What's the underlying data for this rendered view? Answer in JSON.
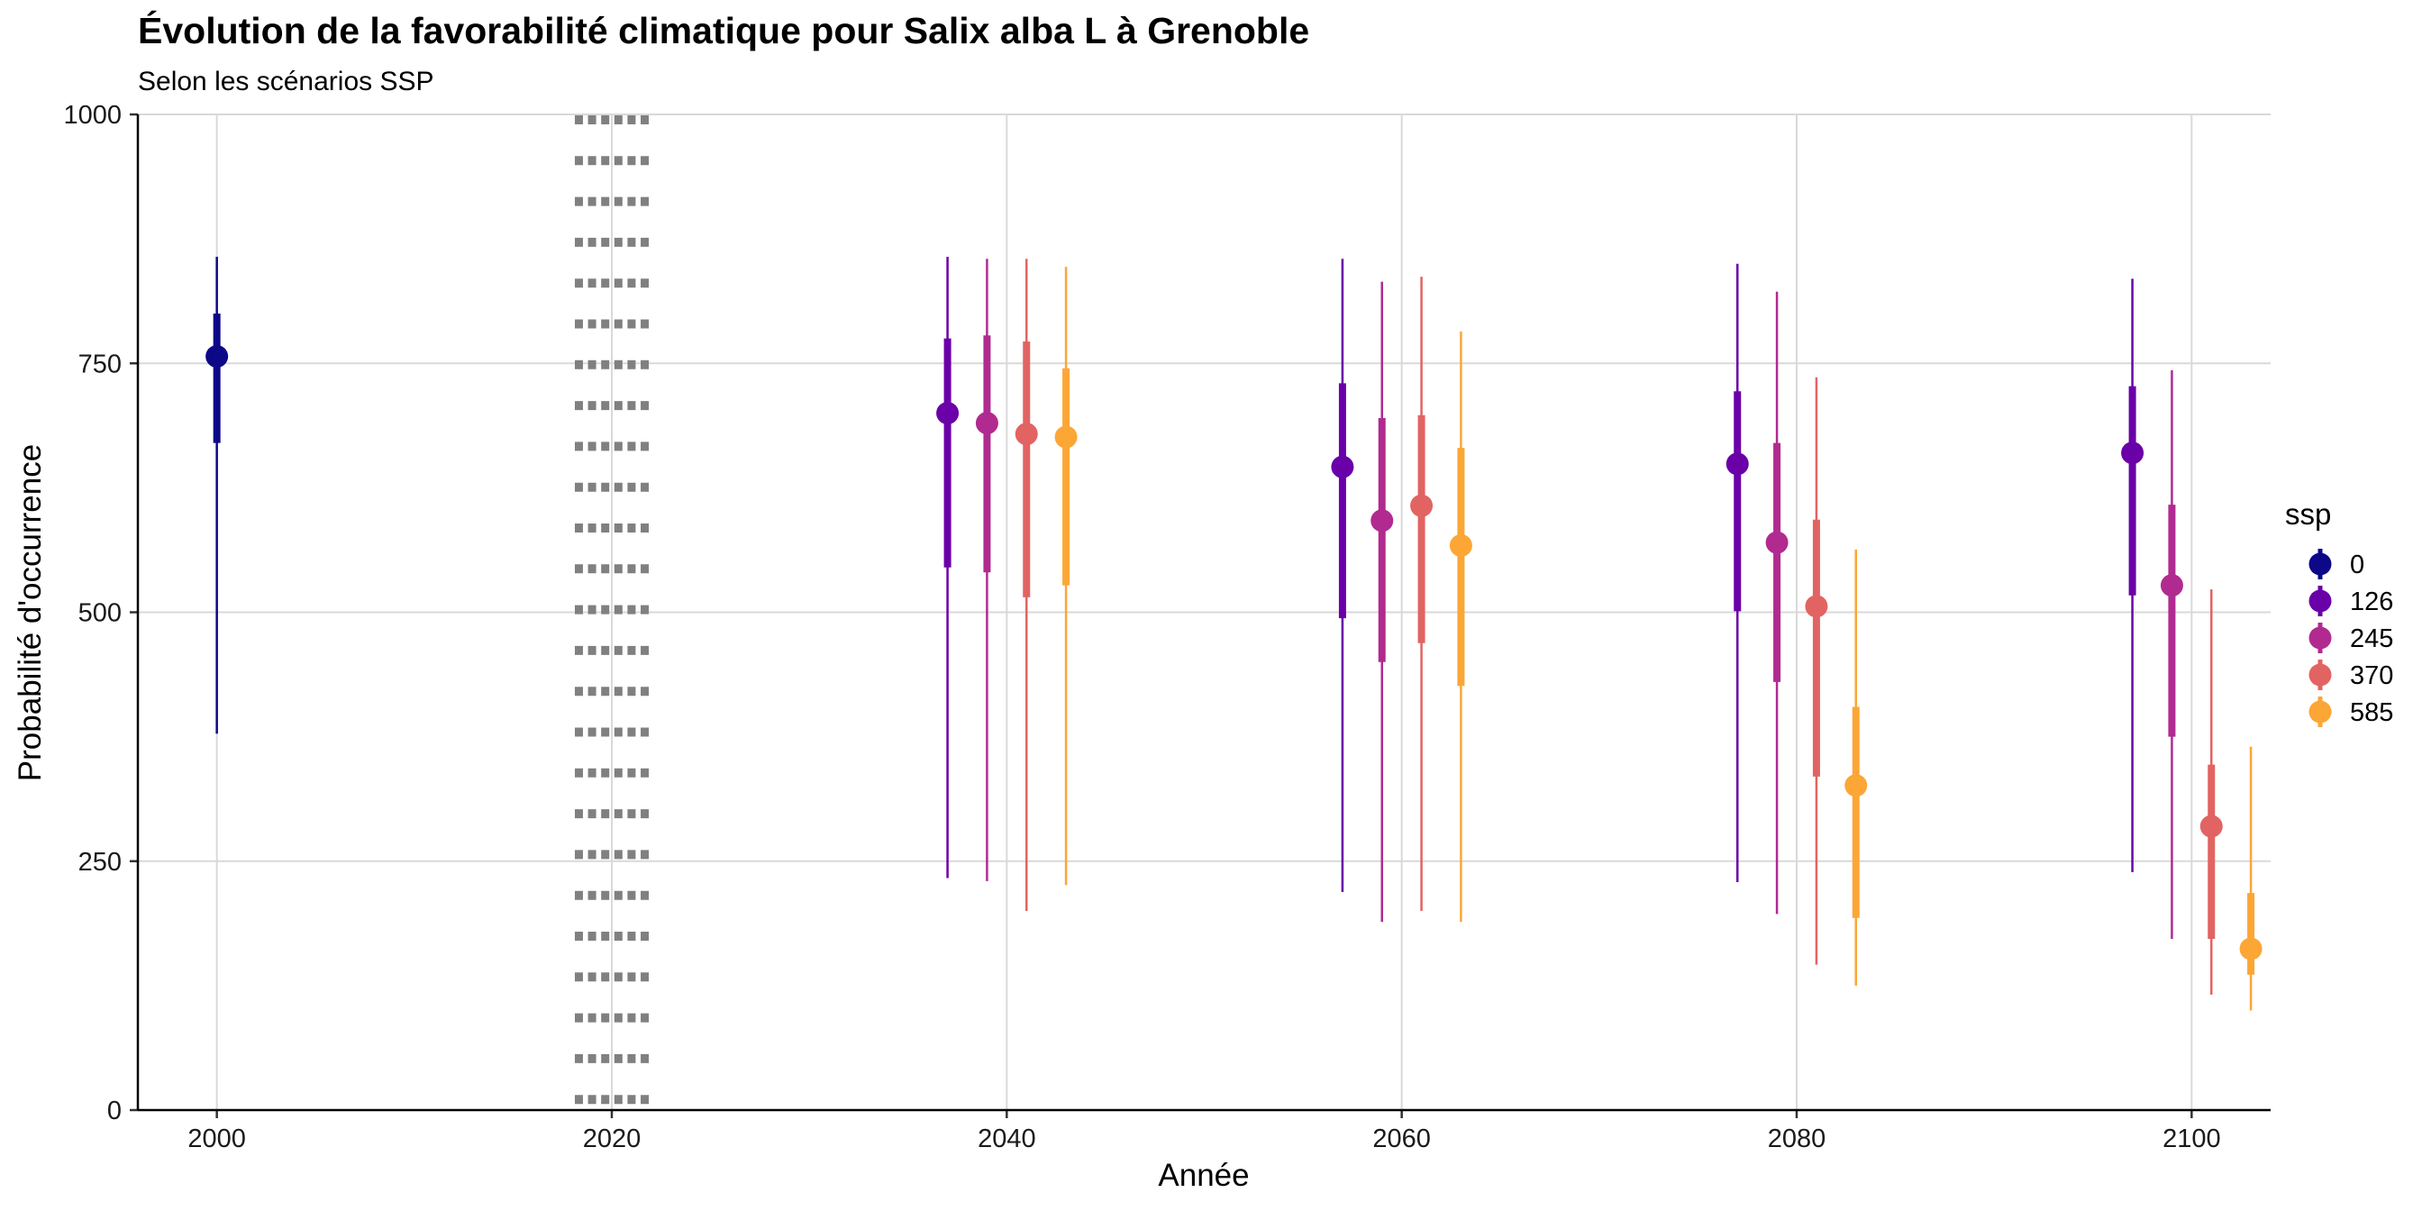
{
  "chart_data": {
    "type": "pointrange",
    "title": "Évolution de la favorabilité climatique pour Salix alba L à Grenoble",
    "subtitle": "Selon les scénarios SSP",
    "xlabel": "Année",
    "ylabel": "Probabilité d'occurrence",
    "xlim": [
      1996,
      2104
    ],
    "ylim": [
      0,
      1000
    ],
    "x_ticks": [
      "2000",
      "2020",
      "2040",
      "2060",
      "2080",
      "2100"
    ],
    "y_ticks": [
      "0",
      "250",
      "500",
      "750",
      "1000"
    ],
    "grid": true,
    "reference_band": {
      "x_start": 2018,
      "x_end": 2022,
      "style": "dotted"
    },
    "legend": {
      "title": "ssp",
      "position": "right"
    },
    "series": [
      {
        "name": "0",
        "color": "#0d0887",
        "points": [
          {
            "x": 2000,
            "y": 757,
            "inner": [
              670,
              800
            ],
            "outer": [
              378,
              857
            ]
          }
        ]
      },
      {
        "name": "126",
        "color": "#6a00a8",
        "points": [
          {
            "x": 2037,
            "y": 700,
            "inner": [
              545,
              775
            ],
            "outer": [
              233,
              857
            ]
          },
          {
            "x": 2057,
            "y": 646,
            "inner": [
              494,
              730
            ],
            "outer": [
              219,
              855
            ]
          },
          {
            "x": 2077,
            "y": 649,
            "inner": [
              501,
              722
            ],
            "outer": [
              229,
              850
            ]
          },
          {
            "x": 2097,
            "y": 660,
            "inner": [
              517,
              727
            ],
            "outer": [
              239,
              835
            ]
          }
        ]
      },
      {
        "name": "245",
        "color": "#b12a90",
        "points": [
          {
            "x": 2039,
            "y": 690,
            "inner": [
              540,
              778
            ],
            "outer": [
              230,
              855
            ]
          },
          {
            "x": 2059,
            "y": 592,
            "inner": [
              450,
              695
            ],
            "outer": [
              189,
              832
            ]
          },
          {
            "x": 2079,
            "y": 570,
            "inner": [
              430,
              670
            ],
            "outer": [
              197,
              822
            ]
          },
          {
            "x": 2099,
            "y": 527,
            "inner": [
              375,
              608
            ],
            "outer": [
              172,
              743
            ]
          }
        ]
      },
      {
        "name": "370",
        "color": "#e16462",
        "points": [
          {
            "x": 2041,
            "y": 679,
            "inner": [
              515,
              772
            ],
            "outer": [
              200,
              855
            ]
          },
          {
            "x": 2061,
            "y": 607,
            "inner": [
              469,
              698
            ],
            "outer": [
              200,
              837
            ]
          },
          {
            "x": 2081,
            "y": 506,
            "inner": [
              335,
              593
            ],
            "outer": [
              146,
              736
            ]
          },
          {
            "x": 2101,
            "y": 285,
            "inner": [
              172,
              347
            ],
            "outer": [
              116,
              523
            ]
          }
        ]
      },
      {
        "name": "585",
        "color": "#fca636",
        "points": [
          {
            "x": 2043,
            "y": 676,
            "inner": [
              527,
              745
            ],
            "outer": [
              226,
              847
            ]
          },
          {
            "x": 2063,
            "y": 567,
            "inner": [
              426,
              665
            ],
            "outer": [
              189,
              782
            ]
          },
          {
            "x": 2083,
            "y": 326,
            "inner": [
              193,
              405
            ],
            "outer": [
              125,
              563
            ]
          },
          {
            "x": 2103,
            "y": 162,
            "inner": [
              136,
              218
            ],
            "outer": [
              100,
              365
            ]
          }
        ]
      }
    ]
  }
}
